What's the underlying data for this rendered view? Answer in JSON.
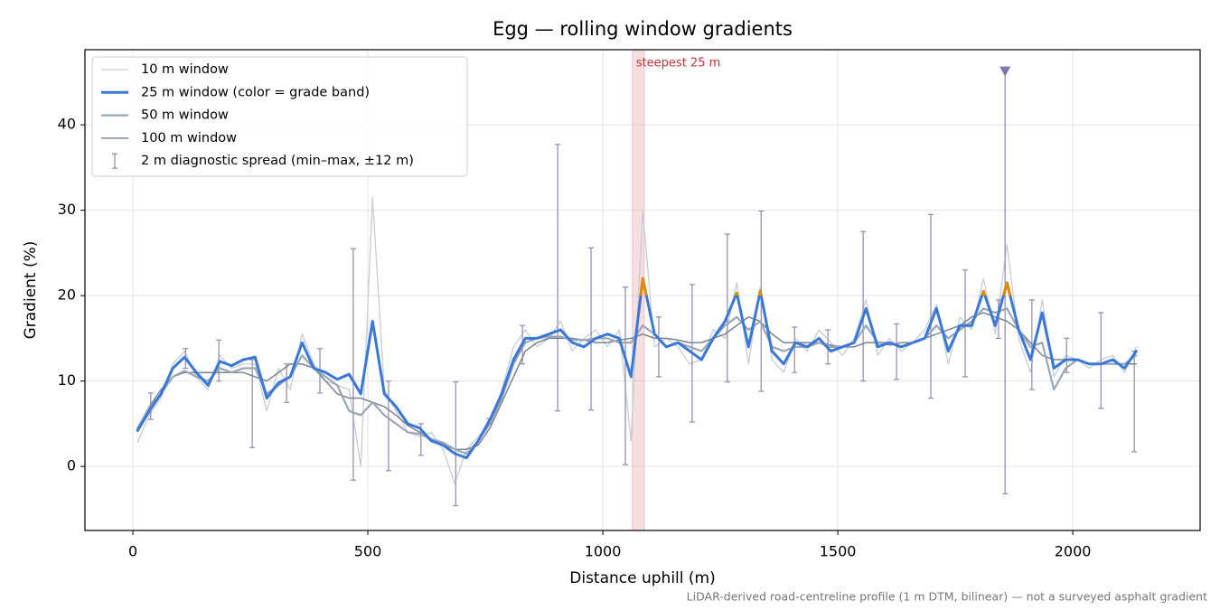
{
  "chart_data": {
    "type": "line",
    "title": "Egg — rolling window gradients",
    "xlabel": "Distance uphill (m)",
    "ylabel": "Gradient (%)",
    "footnote": "LiDAR-derived road-centreline profile (1 m DTM, bilinear) — not a surveyed asphalt gradient",
    "xlim": [
      -102,
      2271
    ],
    "ylim": [
      -7.5,
      48.8
    ],
    "xticks": [
      0,
      500,
      1000,
      1500,
      2000
    ],
    "yticks": [
      0,
      10,
      20,
      30,
      40
    ],
    "grid": true,
    "legend": "upper left",
    "band_threshold": 20,
    "band_color": "#e08a00",
    "x": [
      10,
      35,
      60,
      85,
      110,
      135,
      160,
      185,
      210,
      235,
      260,
      285,
      310,
      335,
      360,
      385,
      410,
      435,
      460,
      485,
      510,
      535,
      560,
      585,
      610,
      635,
      660,
      685,
      710,
      735,
      760,
      785,
      810,
      835,
      860,
      885,
      910,
      935,
      960,
      985,
      1010,
      1035,
      1060,
      1085,
      1110,
      1135,
      1160,
      1185,
      1210,
      1235,
      1260,
      1285,
      1310,
      1335,
      1360,
      1385,
      1410,
      1435,
      1460,
      1485,
      1510,
      1535,
      1560,
      1585,
      1610,
      1635,
      1660,
      1685,
      1710,
      1735,
      1760,
      1785,
      1810,
      1835,
      1860,
      1885,
      1910,
      1935,
      1960,
      1985,
      2010,
      2035,
      2060,
      2085,
      2110,
      2135
    ],
    "series": [
      {
        "name": "10 m window",
        "color": "#c5cdd6",
        "linewidth": 1.3,
        "values": [
          2.8,
          6,
          8,
          12,
          13.5,
          10.5,
          9,
          13,
          11.5,
          12,
          12,
          6.5,
          11.5,
          9,
          15.5,
          12,
          10,
          9.5,
          9,
          0,
          31.5,
          9,
          6.5,
          4,
          3.5,
          4,
          2,
          -2,
          2,
          3.5,
          5,
          9,
          14,
          16,
          14,
          15,
          17,
          13.5,
          15,
          16,
          14,
          16,
          3,
          30,
          14,
          15,
          14,
          12,
          12.5,
          16,
          15,
          21.5,
          12,
          21,
          12.5,
          11,
          15,
          13.5,
          16,
          14.5,
          13,
          15,
          19.5,
          13,
          15,
          13.5,
          14.5,
          16,
          19,
          12,
          17.5,
          16,
          22,
          15.5,
          26,
          15,
          11,
          19.5,
          10.5,
          13,
          12.5,
          11.5,
          12.5,
          13,
          11,
          14
        ]
      },
      {
        "name": "25 m window (color = grade band)",
        "color": "#3a78d8",
        "linewidth": 3,
        "values": [
          4.2,
          6.5,
          8.5,
          11.5,
          12.8,
          11,
          9.5,
          12.3,
          11.8,
          12.5,
          12.8,
          8,
          9.8,
          10.5,
          14.5,
          11.5,
          11,
          10.2,
          10.8,
          8.5,
          17,
          8.5,
          7,
          5,
          4.5,
          3,
          2.5,
          1.5,
          1,
          3,
          5.5,
          8.5,
          12.5,
          15,
          15,
          15.5,
          16,
          14.5,
          14,
          15,
          15.5,
          15,
          10.5,
          22,
          15.5,
          14,
          14.5,
          13.5,
          12.5,
          15,
          17,
          20.3,
          14,
          20.5,
          13.5,
          12,
          14.5,
          14,
          15,
          13.5,
          14,
          14.5,
          18.5,
          14,
          14.5,
          14,
          14.5,
          15,
          18.5,
          13.5,
          16.5,
          16.5,
          20.5,
          16.5,
          21.5,
          16,
          12.5,
          18,
          11.5,
          12.5,
          12.5,
          12,
          12,
          12.5,
          11.5,
          13.5
        ]
      },
      {
        "name": "50 m window",
        "color": "#9aa7b6",
        "linewidth": 2.2,
        "values": [
          4.5,
          6.8,
          8.5,
          10.5,
          11.2,
          10.5,
          10,
          11.5,
          11,
          11.5,
          11.5,
          8.5,
          9.5,
          10.5,
          13,
          11.5,
          10.5,
          9.5,
          6.5,
          6,
          7.5,
          6,
          5,
          4,
          3.8,
          3.2,
          2.8,
          2,
          1.5,
          3,
          5,
          8,
          12,
          14.5,
          15,
          15.2,
          15.2,
          14.8,
          14.8,
          15,
          15,
          14.5,
          14.5,
          16.5,
          15.5,
          14,
          14.5,
          14,
          13.5,
          15,
          16.5,
          17.5,
          16,
          17,
          14,
          13.5,
          14,
          14,
          14.5,
          14,
          14,
          14.5,
          16.5,
          14.5,
          14.5,
          14,
          14.5,
          15,
          16.5,
          15,
          16,
          17,
          18.5,
          18,
          18.5,
          16,
          14,
          14.5,
          9,
          11.5,
          12.5,
          12,
          12,
          12,
          12,
          13
        ]
      },
      {
        "name": "100 m window",
        "color": "#7b8492",
        "linewidth": 1.5,
        "values": [
          4.5,
          7,
          9,
          10.5,
          11,
          11,
          11,
          11,
          11,
          11,
          10.5,
          10,
          11,
          12,
          12,
          11.5,
          10,
          8.5,
          8,
          8,
          7.5,
          7,
          6,
          4.8,
          4,
          3,
          2.5,
          2,
          2,
          2.5,
          4.5,
          7.5,
          10.5,
          13.5,
          14.5,
          15,
          15,
          15,
          14.8,
          14.5,
          14.5,
          14.8,
          15,
          15.5,
          15,
          15,
          14.8,
          14.5,
          14.5,
          15,
          15.5,
          16.5,
          17.5,
          17,
          15.5,
          14.5,
          14.5,
          14.5,
          14.5,
          14.2,
          14,
          14,
          14.5,
          14.5,
          14.2,
          14.5,
          14.5,
          15,
          15.5,
          16,
          16.5,
          17.5,
          18,
          17.5,
          17,
          16,
          14.5,
          13,
          12.5,
          12.5,
          12.5,
          12,
          12,
          12,
          12,
          12
        ]
      }
    ],
    "error_bars": {
      "name": "2 m diagnostic spread (min–max, ±12 m)",
      "color": "#9a90b4",
      "x": [
        38,
        112,
        183,
        254,
        327,
        398,
        469,
        544,
        613,
        687,
        758,
        829,
        904,
        975,
        1048,
        1119,
        1190,
        1265,
        1337,
        1408,
        1479,
        1554,
        1625,
        1698,
        1771,
        1842,
        1856,
        1913,
        1987,
        2060,
        2131
      ],
      "low": [
        5.5,
        11.5,
        10,
        2.2,
        7.5,
        8.6,
        -1.6,
        -0.5,
        1.3,
        -4.6,
        5,
        12,
        6.5,
        6.6,
        0.2,
        10.5,
        5.2,
        9.9,
        8.8,
        11,
        12,
        10,
        10.2,
        8,
        10.5,
        15,
        -3.2,
        9,
        11,
        6.8,
        1.7
      ],
      "high": [
        8.6,
        13.8,
        14.8,
        12.5,
        12,
        13.8,
        25.5,
        10,
        5,
        9.9,
        5.6,
        16.5,
        37.7,
        25.6,
        21,
        17.5,
        21.3,
        27.2,
        29.9,
        16.3,
        16,
        27.5,
        16.7,
        29.5,
        23,
        19.5,
        46.3,
        19.5,
        15,
        18,
        13.5
      ]
    },
    "highlight": {
      "label": "steepest 25 m",
      "x0": 1063,
      "x1": 1088,
      "color": "#e8a0a8",
      "label_color": "#c8303c"
    },
    "peak_marker": {
      "x": 1856,
      "y": 46.3,
      "color": "#8474a8"
    }
  }
}
